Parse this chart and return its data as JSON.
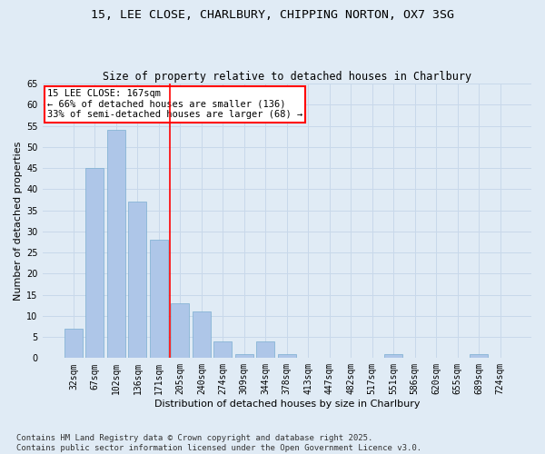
{
  "title_line1": "15, LEE CLOSE, CHARLBURY, CHIPPING NORTON, OX7 3SG",
  "title_line2": "Size of property relative to detached houses in Charlbury",
  "xlabel": "Distribution of detached houses by size in Charlbury",
  "ylabel": "Number of detached properties",
  "categories": [
    "32sqm",
    "67sqm",
    "102sqm",
    "136sqm",
    "171sqm",
    "205sqm",
    "240sqm",
    "274sqm",
    "309sqm",
    "344sqm",
    "378sqm",
    "413sqm",
    "447sqm",
    "482sqm",
    "517sqm",
    "551sqm",
    "586sqm",
    "620sqm",
    "655sqm",
    "689sqm",
    "724sqm"
  ],
  "values": [
    7,
    45,
    54,
    37,
    28,
    13,
    11,
    4,
    1,
    4,
    1,
    0,
    0,
    0,
    0,
    1,
    0,
    0,
    0,
    1,
    0
  ],
  "bar_color": "#aec6e8",
  "bar_edge_color": "#7aaed0",
  "bar_width": 0.85,
  "vline_x": 4.5,
  "vline_color": "red",
  "annotation_text": "15 LEE CLOSE: 167sqm\n← 66% of detached houses are smaller (136)\n33% of semi-detached houses are larger (68) →",
  "annotation_box_color": "white",
  "annotation_box_edge_color": "red",
  "ylim": [
    0,
    65
  ],
  "yticks": [
    0,
    5,
    10,
    15,
    20,
    25,
    30,
    35,
    40,
    45,
    50,
    55,
    60,
    65
  ],
  "grid_color": "#c8d8ea",
  "bg_color": "#e0ebf5",
  "footnote": "Contains HM Land Registry data © Crown copyright and database right 2025.\nContains public sector information licensed under the Open Government Licence v3.0.",
  "title_fontsize": 9.5,
  "subtitle_fontsize": 8.5,
  "axis_label_fontsize": 8,
  "tick_fontsize": 7,
  "annotation_fontsize": 7.5,
  "footnote_fontsize": 6.5
}
